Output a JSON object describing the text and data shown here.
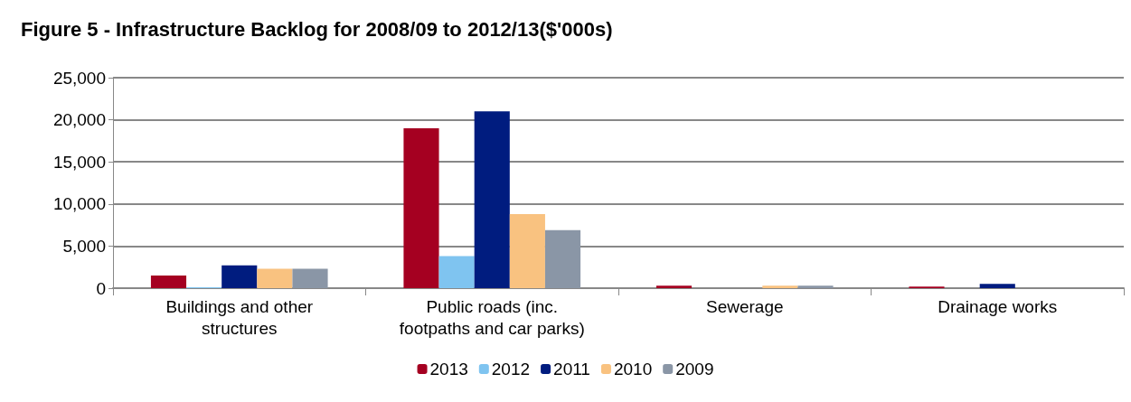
{
  "chart_data": {
    "type": "bar",
    "title": "Figure 5 - Infrastructure Backlog for 2008/09 to 2012/13($'000s)",
    "categories": [
      "Buildings and other\nstructures",
      "Public roads (inc.\nfootpaths and car parks)",
      "Sewerage",
      "Drainage works"
    ],
    "series": [
      {
        "name": "2013",
        "color": "#a50021",
        "values": [
          1500,
          19000,
          300,
          200
        ]
      },
      {
        "name": "2012",
        "color": "#7fc4f0",
        "values": [
          100,
          3800,
          0,
          0
        ]
      },
      {
        "name": "2011",
        "color": "#001c7f",
        "values": [
          2700,
          21000,
          0,
          500
        ]
      },
      {
        "name": "2010",
        "color": "#f9c280",
        "values": [
          2300,
          8800,
          300,
          0
        ]
      },
      {
        "name": "2009",
        "color": "#8a96a6",
        "values": [
          2300,
          6900,
          300,
          0
        ]
      }
    ],
    "ylim": [
      0,
      25000
    ],
    "yticks": [
      0,
      {
        "value": 5000,
        "label": "5,000"
      },
      {
        "value": 10000,
        "label": "10,000"
      },
      {
        "value": 15000,
        "label": "15,000"
      },
      {
        "value": 20000,
        "label": "20,000"
      },
      {
        "value": 25000,
        "label": "25,000"
      }
    ],
    "grid": "y",
    "legend": "bottom"
  }
}
